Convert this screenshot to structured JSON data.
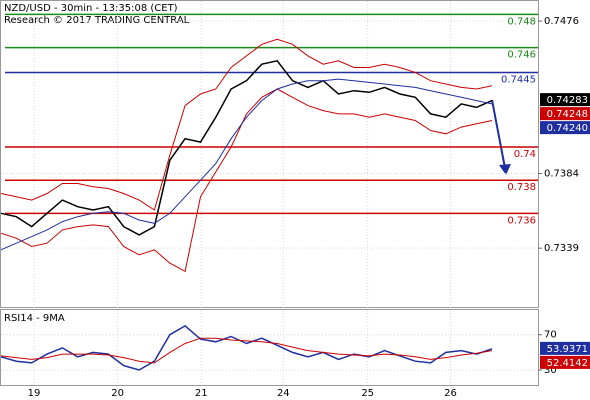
{
  "header": {
    "title": "NZD/USD - 30min - 13:35:08 (CET)",
    "subtitle": "Research © 2017 TRADING CENTRAL"
  },
  "chart_data": [
    {
      "type": "line",
      "x": [
        0,
        2,
        4,
        6,
        8,
        10,
        12,
        14,
        16,
        18,
        20,
        22,
        24,
        26,
        28,
        30,
        32,
        34,
        36,
        38,
        40,
        42,
        44,
        46,
        48,
        50,
        52,
        54,
        56,
        58,
        60,
        62,
        64
      ],
      "xlim": [
        0,
        70
      ],
      "xticks": [
        {
          "value": 4.3,
          "label": "19"
        },
        {
          "value": 15.2,
          "label": "20"
        },
        {
          "value": 26.1,
          "label": "21"
        },
        {
          "value": 36.8,
          "label": "24"
        },
        {
          "value": 47.8,
          "label": "25"
        },
        {
          "value": 58.6,
          "label": "26"
        }
      ],
      "ylim": [
        0.73035,
        0.74881
      ],
      "yticks": [
        0.7476,
        0.7384,
        0.7339
      ],
      "series": [
        {
          "color": "#000000",
          "values": [
            0.736,
            0.7358,
            0.7352,
            0.736,
            0.7368,
            0.7364,
            0.7362,
            0.7364,
            0.7352,
            0.7347,
            0.7352,
            0.7392,
            0.7405,
            0.7403,
            0.7418,
            0.7435,
            0.744,
            0.745,
            0.7452,
            0.744,
            0.7436,
            0.744,
            0.7432,
            0.7434,
            0.7433,
            0.7436,
            0.7432,
            0.743,
            0.742,
            0.7418,
            0.7426,
            0.7424,
            0.7428
          ]
        },
        {
          "color": "#cc0000",
          "values": [
            0.7372,
            0.737,
            0.7368,
            0.7372,
            0.7378,
            0.7378,
            0.7376,
            0.7375,
            0.7372,
            0.7368,
            0.7362,
            0.7395,
            0.7425,
            0.7432,
            0.7435,
            0.7448,
            0.7455,
            0.7462,
            0.7465,
            0.7462,
            0.7455,
            0.745,
            0.7452,
            0.7448,
            0.7448,
            0.745,
            0.7448,
            0.7445,
            0.744,
            0.7438,
            0.7436,
            0.7435,
            0.7437
          ]
        },
        {
          "color": "#cc0000",
          "values": [
            0.7348,
            0.7345,
            0.734,
            0.7342,
            0.735,
            0.7352,
            0.7353,
            0.7352,
            0.734,
            0.7335,
            0.7338,
            0.733,
            0.7325,
            0.737,
            0.7385,
            0.74,
            0.742,
            0.743,
            0.7435,
            0.743,
            0.7425,
            0.7422,
            0.742,
            0.742,
            0.7418,
            0.742,
            0.7418,
            0.7416,
            0.741,
            0.7408,
            0.7412,
            0.7414,
            0.7416
          ]
        },
        {
          "color": "#1f2fa0",
          "values": [
            0.7338,
            0.7342,
            0.7346,
            0.735,
            0.7355,
            0.7358,
            0.736,
            0.7361,
            0.736,
            0.7356,
            0.7354,
            0.736,
            0.737,
            0.738,
            0.739,
            0.7405,
            0.7418,
            0.7428,
            0.7435,
            0.7438,
            0.744,
            0.744,
            0.7441,
            0.744,
            0.7439,
            0.7438,
            0.7437,
            0.7436,
            0.7434,
            0.7432,
            0.743,
            0.7428,
            0.7426
          ]
        }
      ],
      "levels": [
        {
          "value": 0.748,
          "color": "#1a8a1a"
        },
        {
          "value": 0.746,
          "color": "#1a8a1a"
        },
        {
          "value": 0.7445,
          "color": "#1f2fa0"
        },
        {
          "value": 0.74,
          "color": "#cc0000"
        },
        {
          "value": 0.738,
          "color": "#cc0000"
        },
        {
          "value": 0.736,
          "color": "#cc0000"
        }
      ],
      "price_tags": [
        {
          "value": 0.74283,
          "color": "#000000"
        },
        {
          "value": 0.74248,
          "color": "#cc0000"
        },
        {
          "value": 0.7424,
          "label": "0.74240",
          "color": "#1f2fa0"
        }
      ]
    },
    {
      "type": "line",
      "title": "RSI14 - 9MA",
      "x": [
        0,
        2,
        4,
        6,
        8,
        10,
        12,
        14,
        16,
        18,
        20,
        22,
        24,
        26,
        28,
        30,
        32,
        34,
        36,
        38,
        40,
        42,
        44,
        46,
        48,
        50,
        52,
        54,
        56,
        58,
        60,
        62,
        64
      ],
      "xlim": [
        0,
        70
      ],
      "ylim": [
        13,
        98
      ],
      "yticks": [
        70,
        30
      ],
      "series": [
        {
          "color": "#1f2fa0",
          "values": [
            45,
            40,
            38,
            48,
            55,
            45,
            50,
            48,
            35,
            30,
            40,
            70,
            80,
            65,
            62,
            68,
            60,
            66,
            58,
            50,
            45,
            50,
            42,
            48,
            45,
            52,
            46,
            40,
            38,
            50,
            52,
            48,
            54
          ]
        },
        {
          "color": "#cc0000",
          "values": [
            46,
            44,
            42,
            44,
            48,
            48,
            48,
            47,
            44,
            40,
            38,
            50,
            60,
            66,
            66,
            64,
            63,
            62,
            60,
            56,
            52,
            50,
            48,
            47,
            46,
            48,
            47,
            45,
            42,
            44,
            47,
            49,
            52
          ]
        }
      ],
      "price_tags": [
        {
          "value": 53.9371,
          "color": "#1f2fa0"
        },
        {
          "value": 52.4142,
          "color": "#cc0000"
        }
      ]
    }
  ]
}
